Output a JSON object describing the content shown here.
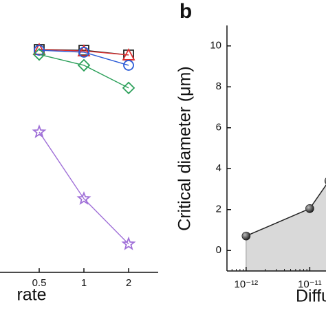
{
  "chart_data": [
    {
      "type": "line",
      "x_label": "rate",
      "categories": [
        "0.5",
        "1",
        "2"
      ],
      "ylim": [
        0,
        100
      ],
      "series": [
        {
          "name": "square",
          "marker": "square",
          "color": "#222222",
          "values": [
            90.5,
            90.2,
            88.3
          ]
        },
        {
          "name": "triangle",
          "marker": "triangle",
          "color": "#e03030",
          "values": [
            90.5,
            89.9,
            88.3
          ]
        },
        {
          "name": "circle",
          "marker": "circle",
          "color": "#2a5bd7",
          "values": [
            90.2,
            89.4,
            84.1
          ]
        },
        {
          "name": "diamond",
          "marker": "diamond",
          "color": "#2ca05a",
          "values": [
            88.5,
            84.1,
            74.9
          ]
        },
        {
          "name": "star",
          "marker": "star",
          "color": "#a070d8",
          "values": [
            57.0,
            29.9,
            11.5
          ]
        }
      ]
    },
    {
      "type": "area",
      "panel_label": "b",
      "y_label": "Critical diameter (μm)",
      "x_label": "Diffu",
      "xscale": "log",
      "x": [
        1e-12,
        1e-11,
        2e-11
      ],
      "values": [
        0.71,
        2.05,
        3.4
      ],
      "color": "#222222",
      "fill": "#d9d9d9",
      "xlim": [
        5e-13,
        1.8e-11
      ],
      "xticks": [
        {
          "value": 1e-12,
          "label": "10⁻¹²"
        },
        {
          "value": 1e-11,
          "label": "10⁻¹¹"
        }
      ],
      "ylim": [
        -1,
        11
      ],
      "yticks": [
        0,
        2,
        4,
        6,
        8,
        10
      ]
    }
  ]
}
